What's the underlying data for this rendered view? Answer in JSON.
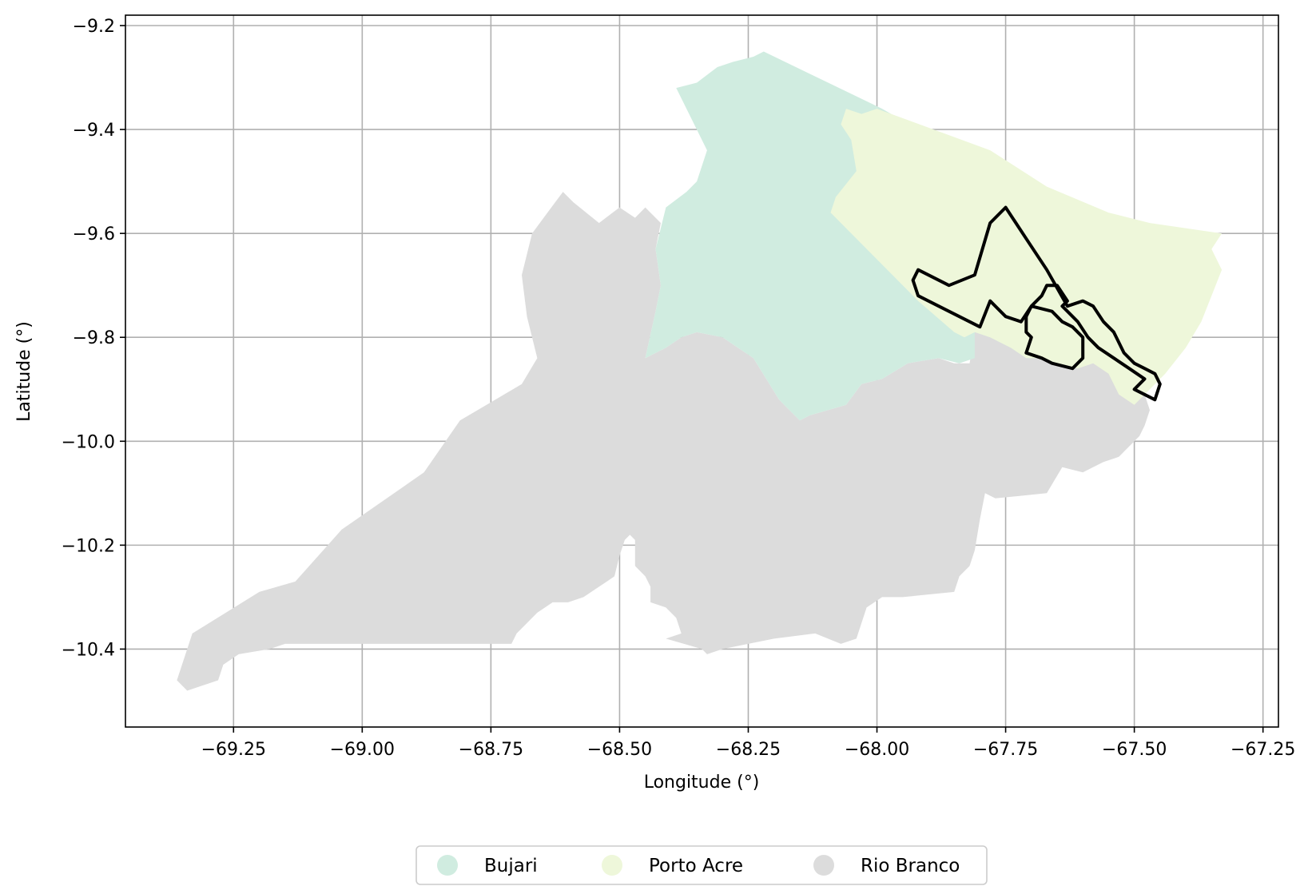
{
  "figure": {
    "xlabel": "Longitude (°)",
    "ylabel": "Latitude (°)"
  },
  "chart_data": {
    "type": "map",
    "xlim": [
      -69.46,
      -67.22
    ],
    "ylim": [
      -10.55,
      -9.18
    ],
    "grid": true,
    "x_ticks": [
      {
        "value": -69.25,
        "label": "−69.25"
      },
      {
        "value": -69.0,
        "label": "−69.00"
      },
      {
        "value": -68.75,
        "label": "−68.75"
      },
      {
        "value": -68.5,
        "label": "−68.50"
      },
      {
        "value": -68.25,
        "label": "−68.25"
      },
      {
        "value": -68.0,
        "label": "−68.00"
      },
      {
        "value": -67.75,
        "label": "−67.75"
      },
      {
        "value": -67.5,
        "label": "−67.50"
      },
      {
        "value": -67.25,
        "label": "−67.25"
      }
    ],
    "y_ticks": [
      {
        "value": -9.2,
        "label": "−9.2"
      },
      {
        "value": -9.4,
        "label": "−9.4"
      },
      {
        "value": -9.6,
        "label": "−9.6"
      },
      {
        "value": -9.8,
        "label": "−9.8"
      },
      {
        "value": -10.0,
        "label": "−10.0"
      },
      {
        "value": -10.2,
        "label": "−10.2"
      },
      {
        "value": -10.4,
        "label": "−10.4"
      }
    ],
    "legend_position": "bottom-center",
    "regions": [
      {
        "name": "Rio Branco",
        "color": "#dcdcdc",
        "coords": [
          [
            -69.36,
            -10.46
          ],
          [
            -69.34,
            -10.48
          ],
          [
            -69.31,
            -10.47
          ],
          [
            -69.28,
            -10.46
          ],
          [
            -69.27,
            -10.43
          ],
          [
            -69.24,
            -10.41
          ],
          [
            -69.18,
            -10.4
          ],
          [
            -69.15,
            -10.39
          ],
          [
            -68.71,
            -10.39
          ],
          [
            -68.7,
            -10.37
          ],
          [
            -68.68,
            -10.35
          ],
          [
            -68.66,
            -10.33
          ],
          [
            -68.63,
            -10.31
          ],
          [
            -68.6,
            -10.31
          ],
          [
            -68.57,
            -10.3
          ],
          [
            -68.54,
            -10.28
          ],
          [
            -68.51,
            -10.26
          ],
          [
            -68.5,
            -10.22
          ],
          [
            -68.49,
            -10.19
          ],
          [
            -68.48,
            -10.18
          ],
          [
            -68.47,
            -10.19
          ],
          [
            -68.47,
            -10.24
          ],
          [
            -68.45,
            -10.26
          ],
          [
            -68.44,
            -10.28
          ],
          [
            -68.44,
            -10.31
          ],
          [
            -68.41,
            -10.32
          ],
          [
            -68.39,
            -10.34
          ],
          [
            -68.38,
            -10.37
          ],
          [
            -68.41,
            -10.38
          ],
          [
            -68.34,
            -10.4
          ],
          [
            -68.33,
            -10.41
          ],
          [
            -68.3,
            -10.4
          ],
          [
            -68.25,
            -10.39
          ],
          [
            -68.2,
            -10.38
          ],
          [
            -68.12,
            -10.37
          ],
          [
            -68.07,
            -10.39
          ],
          [
            -68.04,
            -10.38
          ],
          [
            -68.03,
            -10.35
          ],
          [
            -68.02,
            -10.32
          ],
          [
            -67.99,
            -10.3
          ],
          [
            -67.95,
            -10.3
          ],
          [
            -67.85,
            -10.29
          ],
          [
            -67.84,
            -10.26
          ],
          [
            -67.82,
            -10.24
          ],
          [
            -67.81,
            -10.21
          ],
          [
            -67.8,
            -10.15
          ],
          [
            -67.79,
            -10.1
          ],
          [
            -67.77,
            -10.11
          ],
          [
            -67.67,
            -10.1
          ],
          [
            -67.64,
            -10.05
          ],
          [
            -67.6,
            -10.06
          ],
          [
            -67.56,
            -10.04
          ],
          [
            -67.53,
            -10.03
          ],
          [
            -67.51,
            -10.01
          ],
          [
            -67.49,
            -9.99
          ],
          [
            -67.48,
            -9.97
          ],
          [
            -67.47,
            -9.94
          ],
          [
            -67.48,
            -9.91
          ],
          [
            -67.51,
            -9.88
          ],
          [
            -67.55,
            -9.85
          ],
          [
            -67.59,
            -9.83
          ],
          [
            -67.62,
            -9.82
          ],
          [
            -67.66,
            -9.8
          ],
          [
            -67.7,
            -9.78
          ],
          [
            -67.73,
            -9.76
          ],
          [
            -67.76,
            -9.75
          ],
          [
            -67.79,
            -9.77
          ],
          [
            -67.81,
            -9.79
          ],
          [
            -67.82,
            -9.85
          ],
          [
            -67.85,
            -9.85
          ],
          [
            -67.88,
            -9.84
          ],
          [
            -67.94,
            -9.85
          ],
          [
            -67.99,
            -9.88
          ],
          [
            -68.03,
            -9.89
          ],
          [
            -68.06,
            -9.93
          ],
          [
            -68.13,
            -9.95
          ],
          [
            -68.15,
            -9.96
          ],
          [
            -68.19,
            -9.92
          ],
          [
            -68.24,
            -9.84
          ],
          [
            -68.27,
            -9.82
          ],
          [
            -68.3,
            -9.8
          ],
          [
            -68.35,
            -9.79
          ],
          [
            -68.38,
            -9.8
          ],
          [
            -68.41,
            -9.82
          ],
          [
            -68.45,
            -9.84
          ],
          [
            -68.43,
            -9.75
          ],
          [
            -68.42,
            -9.7
          ],
          [
            -68.43,
            -9.63
          ],
          [
            -68.42,
            -9.58
          ],
          [
            -68.45,
            -9.55
          ],
          [
            -68.47,
            -9.57
          ],
          [
            -68.5,
            -9.55
          ],
          [
            -68.54,
            -9.58
          ],
          [
            -68.59,
            -9.54
          ],
          [
            -68.61,
            -9.52
          ],
          [
            -68.64,
            -9.56
          ],
          [
            -68.67,
            -9.6
          ],
          [
            -68.69,
            -9.68
          ],
          [
            -68.68,
            -9.76
          ],
          [
            -68.66,
            -9.84
          ],
          [
            -68.69,
            -9.89
          ],
          [
            -68.81,
            -9.96
          ],
          [
            -68.88,
            -10.06
          ],
          [
            -69.04,
            -10.17
          ],
          [
            -69.13,
            -10.27
          ],
          [
            -69.2,
            -10.29
          ],
          [
            -69.33,
            -10.37
          ]
        ]
      },
      {
        "name": "Bujari",
        "color": "#d0ece0",
        "coords": [
          [
            -68.39,
            -9.32
          ],
          [
            -68.35,
            -9.31
          ],
          [
            -68.31,
            -9.28
          ],
          [
            -68.28,
            -9.27
          ],
          [
            -68.24,
            -9.26
          ],
          [
            -68.22,
            -9.25
          ],
          [
            -67.99,
            -9.36
          ],
          [
            -67.85,
            -9.44
          ],
          [
            -67.72,
            -9.51
          ],
          [
            -67.63,
            -9.6
          ],
          [
            -67.6,
            -9.64
          ],
          [
            -67.55,
            -9.7
          ],
          [
            -67.5,
            -9.76
          ],
          [
            -67.58,
            -9.79
          ],
          [
            -67.6,
            -9.8
          ],
          [
            -67.59,
            -9.84
          ],
          [
            -67.61,
            -9.86
          ],
          [
            -67.65,
            -9.85
          ],
          [
            -67.68,
            -9.84
          ],
          [
            -67.71,
            -9.84
          ],
          [
            -67.74,
            -9.82
          ],
          [
            -67.78,
            -9.8
          ],
          [
            -67.81,
            -9.79
          ],
          [
            -67.81,
            -9.84
          ],
          [
            -67.84,
            -9.85
          ],
          [
            -67.88,
            -9.84
          ],
          [
            -67.94,
            -9.85
          ],
          [
            -67.99,
            -9.88
          ],
          [
            -68.03,
            -9.89
          ],
          [
            -68.06,
            -9.93
          ],
          [
            -68.13,
            -9.95
          ],
          [
            -68.15,
            -9.96
          ],
          [
            -68.19,
            -9.92
          ],
          [
            -68.24,
            -9.84
          ],
          [
            -68.27,
            -9.82
          ],
          [
            -68.3,
            -9.8
          ],
          [
            -68.35,
            -9.79
          ],
          [
            -68.38,
            -9.8
          ],
          [
            -68.41,
            -9.82
          ],
          [
            -68.45,
            -9.84
          ],
          [
            -68.43,
            -9.75
          ],
          [
            -68.42,
            -9.7
          ],
          [
            -68.43,
            -9.63
          ],
          [
            -68.41,
            -9.55
          ],
          [
            -68.37,
            -9.52
          ],
          [
            -68.35,
            -9.5
          ],
          [
            -68.33,
            -9.44
          ]
        ]
      },
      {
        "name": "Porto Acre",
        "color": "#eef7da",
        "coords": [
          [
            -68.06,
            -9.36
          ],
          [
            -68.03,
            -9.37
          ],
          [
            -68.0,
            -9.36
          ],
          [
            -67.78,
            -9.44
          ],
          [
            -67.67,
            -9.51
          ],
          [
            -67.55,
            -9.56
          ],
          [
            -67.47,
            -9.58
          ],
          [
            -67.33,
            -9.6
          ],
          [
            -67.35,
            -9.63
          ],
          [
            -67.33,
            -9.67
          ],
          [
            -67.35,
            -9.72
          ],
          [
            -67.37,
            -9.77
          ],
          [
            -67.4,
            -9.82
          ],
          [
            -67.44,
            -9.87
          ],
          [
            -67.47,
            -9.9
          ],
          [
            -67.5,
            -9.93
          ],
          [
            -67.53,
            -9.91
          ],
          [
            -67.55,
            -9.87
          ],
          [
            -67.58,
            -9.85
          ],
          [
            -67.61,
            -9.86
          ],
          [
            -67.65,
            -9.85
          ],
          [
            -67.68,
            -9.84
          ],
          [
            -67.71,
            -9.84
          ],
          [
            -67.74,
            -9.82
          ],
          [
            -67.78,
            -9.8
          ],
          [
            -67.81,
            -9.79
          ],
          [
            -67.83,
            -9.8
          ],
          [
            -67.85,
            -9.79
          ],
          [
            -67.92,
            -9.73
          ],
          [
            -68.09,
            -9.56
          ],
          [
            -68.08,
            -9.53
          ],
          [
            -68.04,
            -9.48
          ],
          [
            -68.05,
            -9.42
          ],
          [
            -68.07,
            -9.39
          ]
        ]
      }
    ],
    "outlines": [
      {
        "color": "#000000",
        "coords": [
          [
            -67.93,
            -9.69
          ],
          [
            -67.92,
            -9.67
          ],
          [
            -67.86,
            -9.7
          ],
          [
            -67.81,
            -9.68
          ],
          [
            -67.78,
            -9.58
          ],
          [
            -67.75,
            -9.55
          ],
          [
            -67.71,
            -9.61
          ],
          [
            -67.67,
            -9.67
          ],
          [
            -67.63,
            -9.74
          ],
          [
            -67.6,
            -9.73
          ],
          [
            -67.58,
            -9.74
          ],
          [
            -67.56,
            -9.77
          ],
          [
            -67.54,
            -9.79
          ],
          [
            -67.52,
            -9.83
          ],
          [
            -67.5,
            -9.85
          ],
          [
            -67.48,
            -9.86
          ],
          [
            -67.46,
            -9.87
          ],
          [
            -67.45,
            -9.89
          ],
          [
            -67.46,
            -9.92
          ],
          [
            -67.48,
            -9.91
          ],
          [
            -67.5,
            -9.9
          ],
          [
            -67.48,
            -9.88
          ],
          [
            -67.51,
            -9.86
          ],
          [
            -67.54,
            -9.84
          ],
          [
            -67.57,
            -9.82
          ],
          [
            -67.59,
            -9.8
          ],
          [
            -67.61,
            -9.77
          ],
          [
            -67.63,
            -9.75
          ],
          [
            -67.64,
            -9.74
          ],
          [
            -67.63,
            -9.73
          ],
          [
            -67.65,
            -9.7
          ],
          [
            -67.67,
            -9.7
          ],
          [
            -67.68,
            -9.72
          ],
          [
            -67.7,
            -9.74
          ],
          [
            -67.71,
            -9.76
          ],
          [
            -67.71,
            -9.79
          ],
          [
            -67.7,
            -9.8
          ],
          [
            -67.71,
            -9.83
          ],
          [
            -67.68,
            -9.84
          ],
          [
            -67.66,
            -9.85
          ],
          [
            -67.62,
            -9.86
          ],
          [
            -67.6,
            -9.84
          ],
          [
            -67.6,
            -9.8
          ],
          [
            -67.62,
            -9.78
          ],
          [
            -67.64,
            -9.77
          ],
          [
            -67.66,
            -9.75
          ],
          [
            -67.7,
            -9.74
          ],
          [
            -67.72,
            -9.77
          ],
          [
            -67.75,
            -9.76
          ],
          [
            -67.78,
            -9.73
          ],
          [
            -67.8,
            -9.78
          ],
          [
            -67.82,
            -9.77
          ],
          [
            -67.84,
            -9.76
          ],
          [
            -67.86,
            -9.75
          ],
          [
            -67.88,
            -9.74
          ],
          [
            -67.9,
            -9.73
          ],
          [
            -67.92,
            -9.72
          ]
        ]
      }
    ]
  },
  "legend": {
    "items": [
      {
        "name": "Bujari",
        "color": "#d0ece0"
      },
      {
        "name": "Porto Acre",
        "color": "#eef7da"
      },
      {
        "name": "Rio Branco",
        "color": "#dcdcdc"
      }
    ]
  }
}
